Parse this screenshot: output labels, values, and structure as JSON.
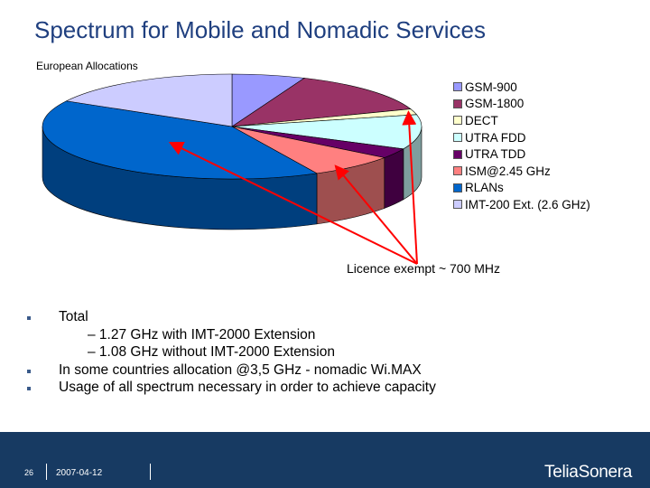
{
  "slide": {
    "title": "Spectrum for Mobile and Nomadic Services",
    "subtitle": "European Allocations"
  },
  "chart_data": {
    "type": "pie",
    "style": "3d",
    "title": "European Allocations",
    "legend_position": "right",
    "categories": [
      "GSM-900",
      "GSM-1800",
      "DECT",
      "UTRA FDD",
      "UTRA TDD",
      "ISM@2.45 GHz",
      "RLANs",
      "IMT-200 Ext. (2.6 GHz)"
    ],
    "values": [
      70,
      150,
      20,
      120,
      35,
      84,
      455,
      190
    ],
    "colors": [
      "#9999ff",
      "#993366",
      "#ffffcc",
      "#ccffff",
      "#660066",
      "#ff8080",
      "#0066cc",
      "#ccccff"
    ],
    "annotation": "Licence exempt ~ 700 MHz"
  },
  "bullets": [
    {
      "text": "Total",
      "subs": [
        "– 1.27 GHz with IMT-2000 Extension",
        "– 1.08 GHz without IMT-2000 Extension"
      ]
    },
    {
      "text": "In some countries allocation @3,5 GHz - nomadic Wi.MAX",
      "subs": []
    },
    {
      "text": "Usage of all spectrum necessary in order to achieve capacity",
      "subs": []
    }
  ],
  "footer": {
    "page_number": "26",
    "date": "2007-04-12",
    "logo_text": "TeliaSonera",
    "background_color": "#173a62"
  }
}
